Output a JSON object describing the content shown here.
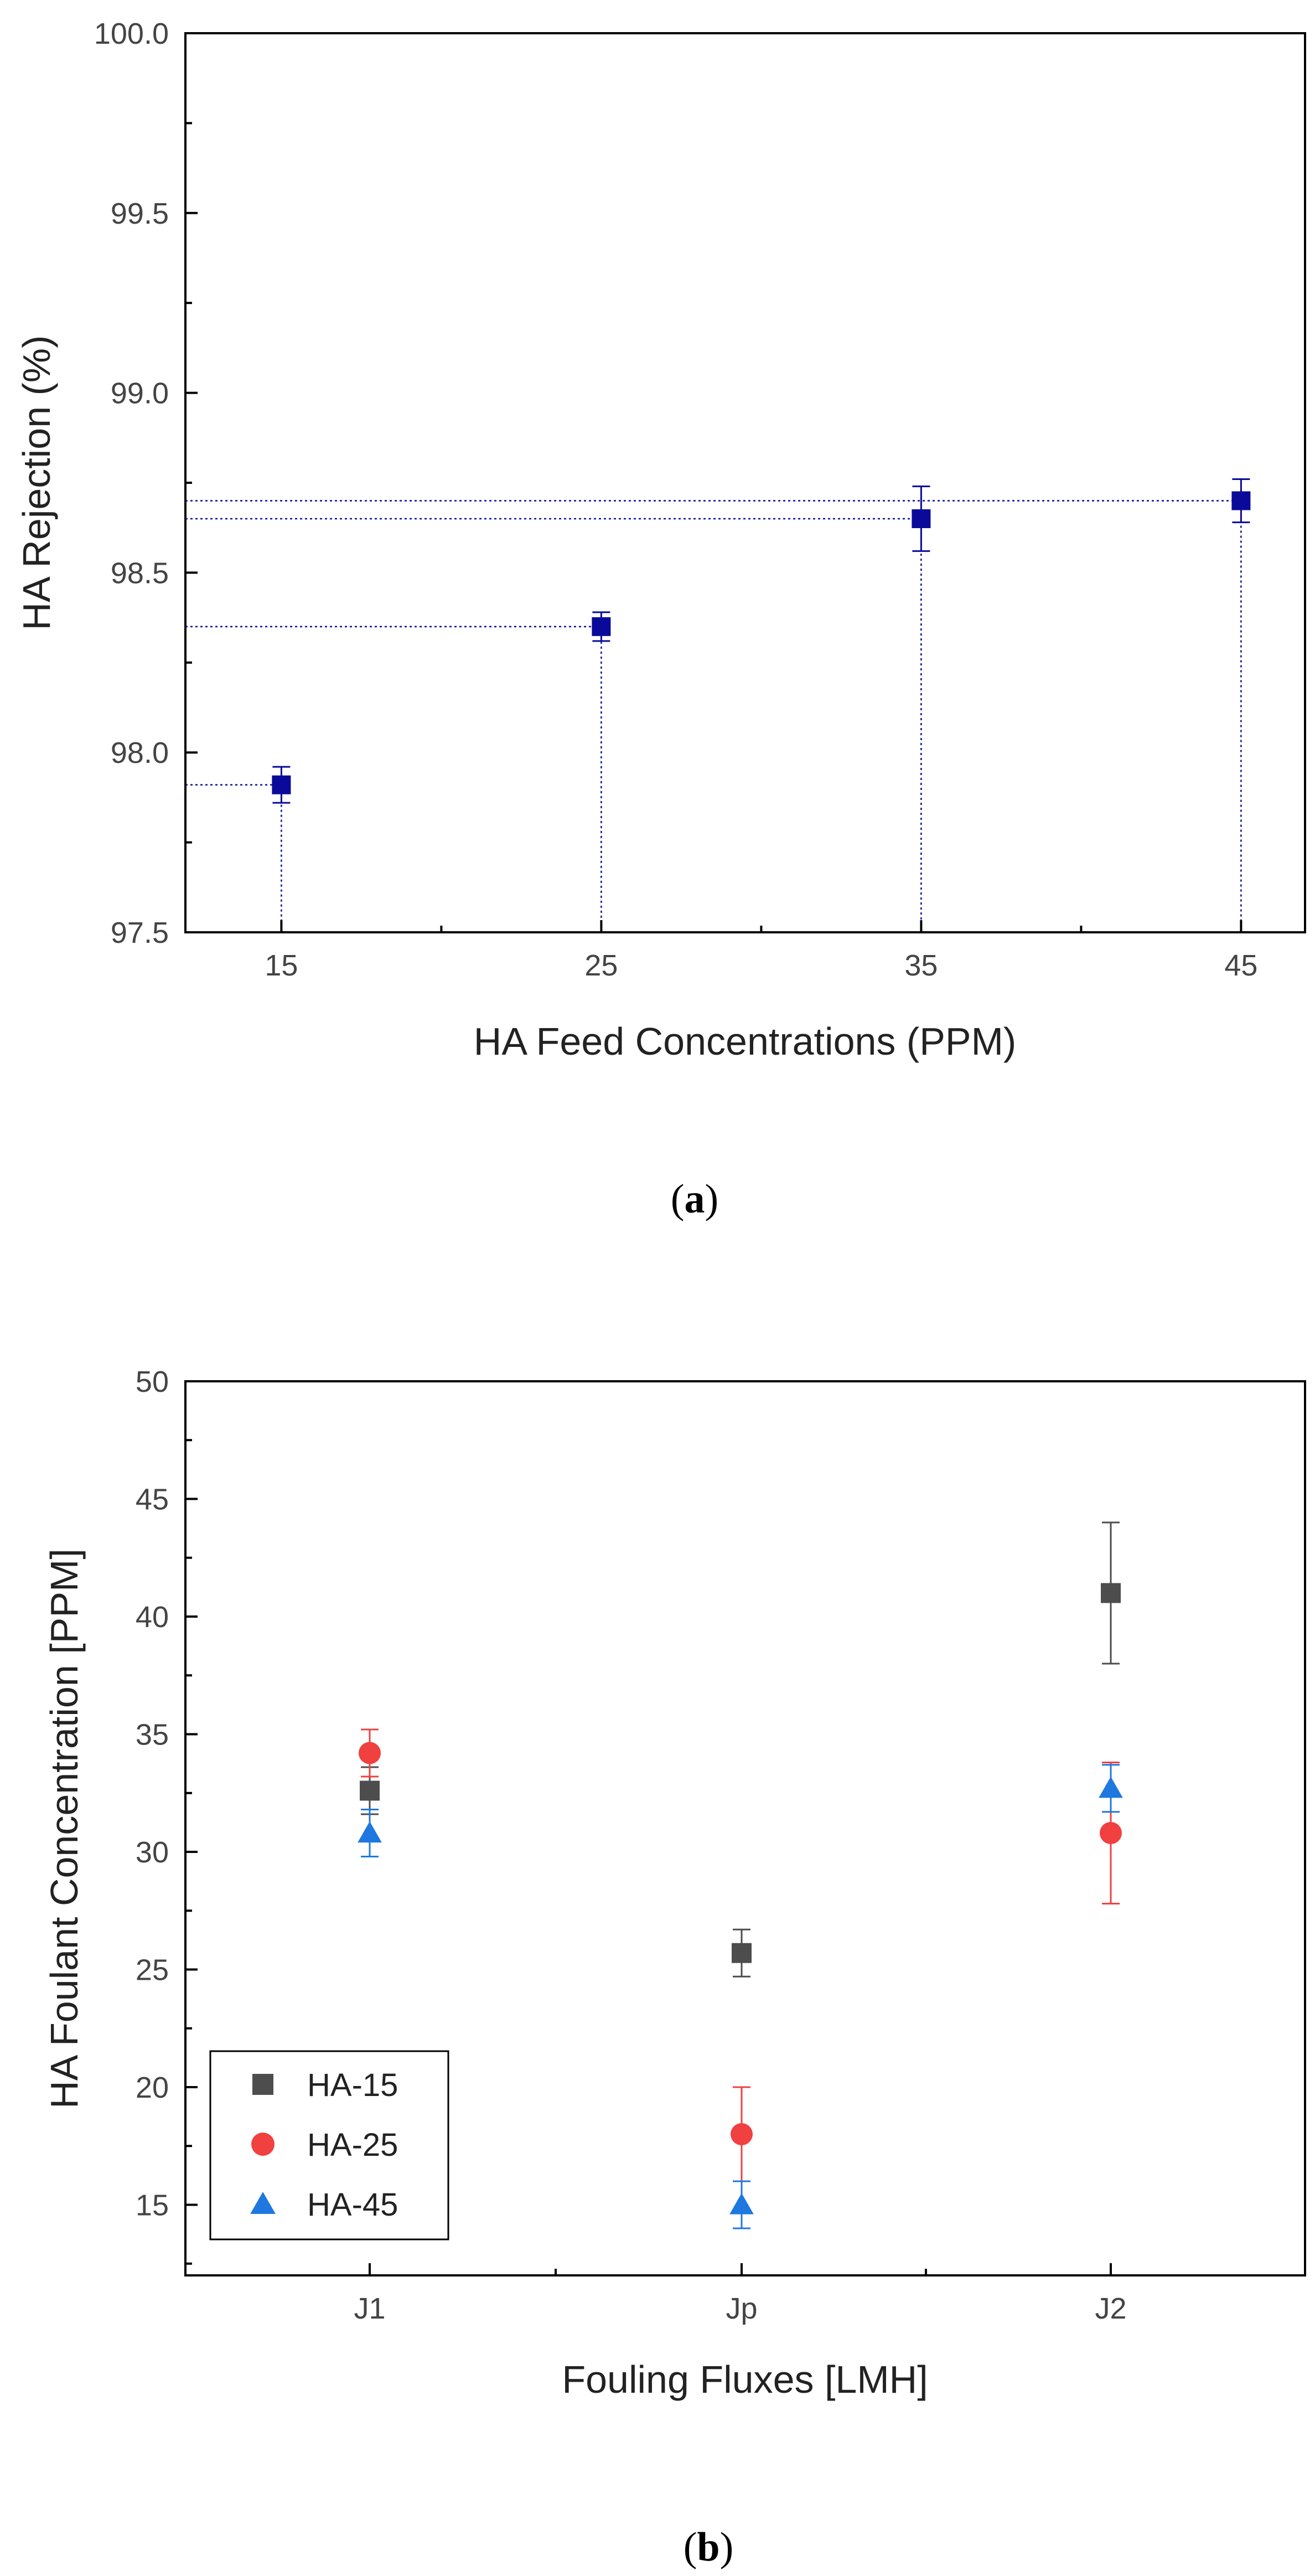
{
  "chart_data": [
    {
      "type": "scatter",
      "panel": "(a)",
      "panel_letter": "a",
      "xlabel": "HA Feed Concentrations (PPM)",
      "ylabel": "HA Rejection (%)",
      "xlim": [
        12,
        47
      ],
      "ylim": [
        97.5,
        100.0
      ],
      "x_ticks": [
        15,
        25,
        35,
        45
      ],
      "x_tick_labels": [
        "15",
        "25",
        "35",
        "45"
      ],
      "y_ticks": [
        97.5,
        98.0,
        98.5,
        99.0,
        99.5,
        100.0
      ],
      "y_tick_labels": [
        "97.5",
        "98.0",
        "98.5",
        "99.0",
        "99.5",
        "100.0"
      ],
      "color": "#0a0a9a",
      "drop_lines": true,
      "series": [
        {
          "name": "HA Rejection",
          "marker": "square",
          "x": [
            15,
            25,
            35,
            45
          ],
          "y": [
            97.91,
            98.35,
            98.65,
            98.7
          ],
          "err": [
            0.05,
            0.04,
            0.09,
            0.06
          ]
        }
      ]
    },
    {
      "type": "scatter",
      "panel": "(b)",
      "panel_letter": "b",
      "xlabel": "Fouling Fluxes [LMH]",
      "ylabel": "HA Foulant Concentration [PPM]",
      "categories": [
        "J1",
        "Jp",
        "J2"
      ],
      "ylim": [
        12,
        50
      ],
      "y_ticks": [
        15,
        20,
        25,
        30,
        35,
        40,
        45,
        50
      ],
      "y_tick_labels": [
        "15",
        "20",
        "25",
        "30",
        "35",
        "40",
        "45",
        "50"
      ],
      "legend_position": "bottom-left",
      "series": [
        {
          "name": "HA-15",
          "marker": "square",
          "color": "#4d4d4d",
          "values": [
            32.6,
            25.7,
            41.0
          ],
          "err": [
            1.0,
            1.0,
            3.0
          ]
        },
        {
          "name": "HA-25",
          "marker": "circle",
          "color": "#f04040",
          "values": [
            34.2,
            18.0,
            30.8
          ],
          "err": [
            1.0,
            2.0,
            3.0
          ]
        },
        {
          "name": "HA-45",
          "marker": "triangle",
          "color": "#1e78e0",
          "values": [
            30.8,
            15.0,
            32.7
          ],
          "err": [
            1.0,
            1.0,
            1.0
          ]
        }
      ]
    }
  ]
}
